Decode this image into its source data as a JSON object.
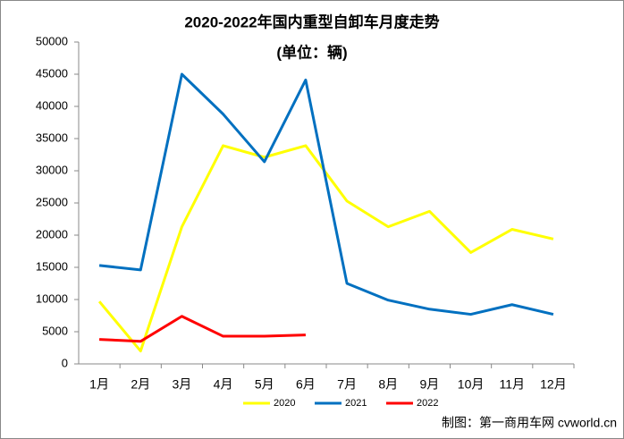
{
  "chart_data": {
    "type": "line",
    "title": "2020-2022年国内重型自卸车月度走势",
    "subtitle": "(单位：辆)",
    "source": "制图：第一商用车网 cvworld.cn",
    "categories": [
      "1月",
      "2月",
      "3月",
      "4月",
      "5月",
      "6月",
      "7月",
      "8月",
      "9月",
      "10月",
      "11月",
      "12月"
    ],
    "series": [
      {
        "name": "2020",
        "color": "#ffff00",
        "values": [
          9700,
          2000,
          21300,
          33900,
          32100,
          33900,
          25300,
          21300,
          23700,
          17300,
          20900,
          19400
        ]
      },
      {
        "name": "2021",
        "color": "#0070c0",
        "values": [
          15300,
          14600,
          45000,
          38800,
          31400,
          44100,
          12500,
          9900,
          8500,
          7700,
          9200,
          7700
        ]
      },
      {
        "name": "2022",
        "color": "#ff0000",
        "values": [
          3800,
          3500,
          7400,
          4300,
          4300,
          4500,
          null,
          null,
          null,
          null,
          null,
          null
        ]
      }
    ],
    "ylim": [
      0,
      50000
    ],
    "yticks": [
      0,
      5000,
      10000,
      15000,
      20000,
      25000,
      30000,
      35000,
      40000,
      45000,
      50000
    ],
    "legend": "bottom"
  }
}
